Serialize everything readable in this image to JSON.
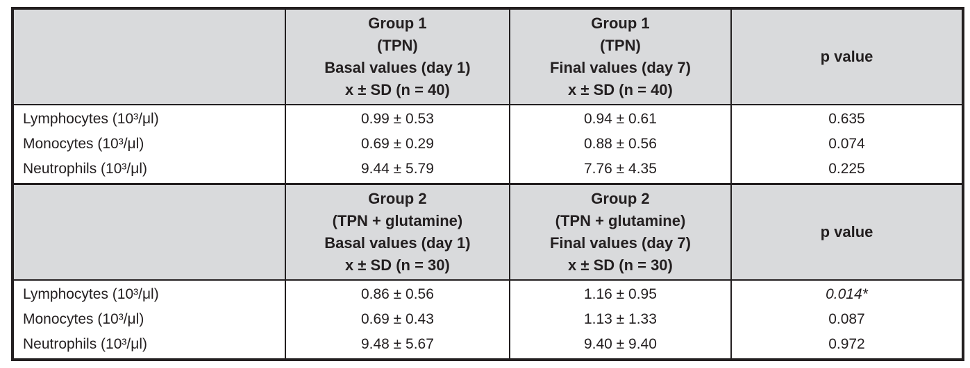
{
  "table": {
    "colors": {
      "header_bg": "#d9dadc",
      "border": "#231f20",
      "text": "#231f20"
    },
    "sections": [
      {
        "header": {
          "row_label": "",
          "basal": "Group 1\n(TPN)\nBasal values (day 1)\nx ± SD (n = 40)",
          "final": "Group 1\n(TPN)\nFinal values (day 7)\nx ± SD (n = 40)",
          "p": "p value"
        },
        "rows": [
          {
            "label": "Lymphocytes (10³/μl)",
            "basal": "0.99 ± 0.53",
            "final": "0.94 ± 0.61",
            "p": "0.635"
          },
          {
            "label": "Monocytes (10³/μl)",
            "basal": "0.69 ± 0.29",
            "final": "0.88 ± 0.56",
            "p": "0.074"
          },
          {
            "label": "Neutrophils (10³/μl)",
            "basal": "9.44 ± 5.79",
            "final": "7.76 ± 4.35",
            "p": "0.225"
          }
        ]
      },
      {
        "header": {
          "row_label": "",
          "basal": "Group 2\n(TPN + glutamine)\nBasal values (day 1)\nx ± SD (n = 30)",
          "final": "Group 2\n(TPN + glutamine)\nFinal values (day 7)\nx ± SD (n = 30)",
          "p": "p value"
        },
        "rows": [
          {
            "label": "Lymphocytes (10³/μl)",
            "basal": "0.86 ± 0.56",
            "final": "1.16 ± 0.95",
            "p": "0.014*"
          },
          {
            "label": "Monocytes (10³/μl)",
            "basal": "0.69 ± 0.43",
            "final": "1.13 ± 1.33",
            "p": "0.087"
          },
          {
            "label": "Neutrophils (10³/μl)",
            "basal": "9.48 ± 5.67",
            "final": "9.40 ± 9.40",
            "p": "0.972"
          }
        ]
      }
    ]
  }
}
